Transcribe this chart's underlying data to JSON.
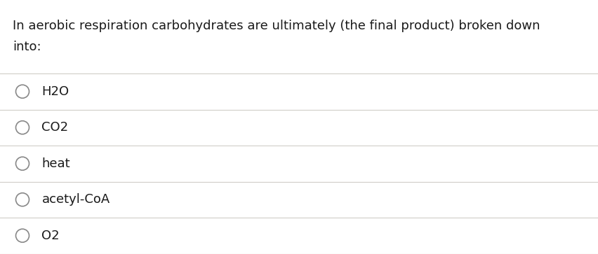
{
  "question_line1": "In aerobic respiration carbohydrates are ultimately (the final product) broken down",
  "question_line2": "into:",
  "options": [
    "H2O",
    "CO2",
    "heat",
    "acetyl-CoA",
    "O2"
  ],
  "background_color": "#ffffff",
  "text_color": "#1a1a1a",
  "line_color": "#d0cdc8",
  "circle_edgecolor": "#888888",
  "font_size_question": 13.0,
  "font_size_options": 13.0,
  "fig_width": 8.52,
  "fig_height": 3.63,
  "dpi": 100
}
